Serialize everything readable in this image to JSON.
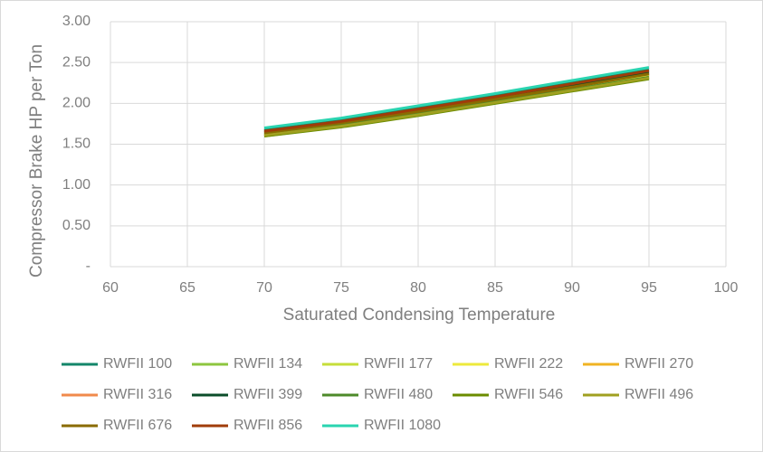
{
  "chart_data": {
    "type": "line",
    "x_label": "Saturated Condensing Temperature",
    "y_label": "Compressor Brake HP per Ton",
    "x": [
      70,
      75,
      80,
      85,
      90,
      95
    ],
    "xlim": [
      60,
      100
    ],
    "xticks": [
      60,
      65,
      70,
      75,
      80,
      85,
      90,
      95,
      100
    ],
    "ylim": [
      0,
      3
    ],
    "yticks": [
      {
        "value": 0,
        "label": "-"
      },
      {
        "value": 0.5,
        "label": "0.50"
      },
      {
        "value": 1,
        "label": "1.00"
      },
      {
        "value": 1.5,
        "label": "1.50"
      },
      {
        "value": 2,
        "label": "2.00"
      },
      {
        "value": 2.5,
        "label": "2.50"
      },
      {
        "value": 3,
        "label": "3.00"
      }
    ],
    "grid": true,
    "legend": "bottom",
    "series": [
      {
        "name": "RWFII 100",
        "color": "#13866a",
        "values": [
          1.67,
          1.79,
          1.94,
          2.09,
          2.25,
          2.41
        ]
      },
      {
        "name": "RWFII 134",
        "color": "#8dc63f",
        "values": [
          1.63,
          1.75,
          1.89,
          2.04,
          2.2,
          2.36
        ]
      },
      {
        "name": "RWFII 177",
        "color": "#c6de3a",
        "values": [
          1.62,
          1.74,
          1.88,
          2.03,
          2.18,
          2.34
        ]
      },
      {
        "name": "RWFII 222",
        "color": "#ede93c",
        "values": [
          1.61,
          1.73,
          1.87,
          2.02,
          2.17,
          2.33
        ]
      },
      {
        "name": "RWFII 270",
        "color": "#f0b323",
        "values": [
          1.6,
          1.72,
          1.86,
          2.01,
          2.16,
          2.32
        ]
      },
      {
        "name": "RWFII 316",
        "color": "#f08a4b",
        "values": [
          1.64,
          1.76,
          1.9,
          2.05,
          2.21,
          2.37
        ]
      },
      {
        "name": "RWFII 399",
        "color": "#0b4d2a",
        "values": [
          1.65,
          1.77,
          1.91,
          2.06,
          2.22,
          2.38
        ]
      },
      {
        "name": "RWFII 480",
        "color": "#4d8a2a",
        "values": [
          1.62,
          1.73,
          1.87,
          2.02,
          2.17,
          2.32
        ]
      },
      {
        "name": "RWFII 546",
        "color": "#6b8c00",
        "values": [
          1.6,
          1.71,
          1.85,
          2.0,
          2.15,
          2.3
        ]
      },
      {
        "name": "RWFII 496",
        "color": "#a0a020",
        "values": [
          1.61,
          1.72,
          1.86,
          2.01,
          2.16,
          2.31
        ]
      },
      {
        "name": "RWFII 676",
        "color": "#8a6b00",
        "values": [
          1.64,
          1.76,
          1.9,
          2.05,
          2.2,
          2.36
        ]
      },
      {
        "name": "RWFII 856",
        "color": "#a03c0a",
        "values": [
          1.66,
          1.78,
          1.93,
          2.08,
          2.24,
          2.4
        ]
      },
      {
        "name": "RWFII 1080",
        "color": "#2ad4b0",
        "values": [
          1.7,
          1.82,
          1.97,
          2.12,
          2.28,
          2.44
        ]
      }
    ]
  }
}
